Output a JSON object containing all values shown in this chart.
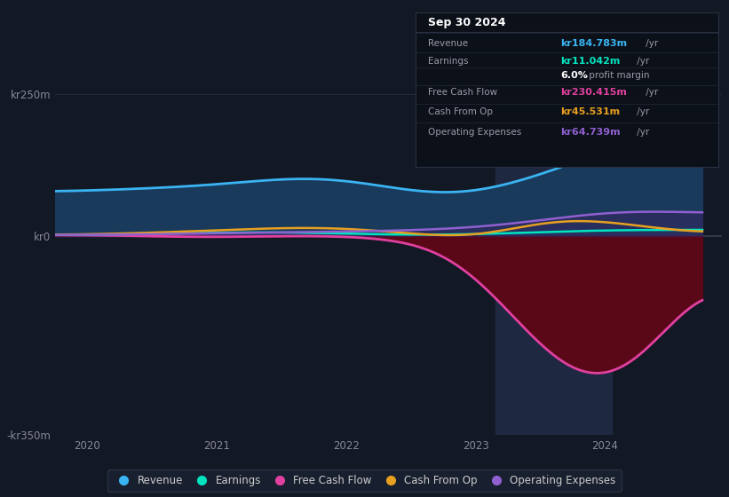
{
  "background_color": "#131825",
  "plot_bg_color": "#131825",
  "revenue_color": "#3ab4f2",
  "earnings_color": "#00e5c0",
  "fcf_color": "#e040a0",
  "cashfromop_color": "#e8a020",
  "opex_color": "#9060d0",
  "revenue_fill": "#1a3a5c",
  "fcf_fill_neg": "#5a0818",
  "legend_items": [
    "Revenue",
    "Earnings",
    "Free Cash Flow",
    "Cash From Op",
    "Operating Expenses"
  ],
  "legend_colors": [
    "#3ab4f2",
    "#00e5c0",
    "#e040a0",
    "#e8a020",
    "#9060d0"
  ],
  "x": [
    2019.75,
    2020.0,
    2020.25,
    2020.5,
    2020.75,
    2021.0,
    2021.25,
    2021.5,
    2021.75,
    2022.0,
    2022.25,
    2022.5,
    2022.75,
    2023.0,
    2023.25,
    2023.5,
    2023.75,
    2024.0,
    2024.25,
    2024.5,
    2024.75
  ],
  "revenue": [
    78,
    80,
    82,
    84,
    87,
    90,
    96,
    102,
    105,
    100,
    90,
    78,
    70,
    75,
    88,
    108,
    128,
    150,
    170,
    182,
    190
  ],
  "earnings": [
    2,
    2,
    3,
    4,
    5,
    6,
    7,
    7,
    6,
    4,
    3,
    2,
    2,
    3,
    5,
    7,
    9,
    10,
    11,
    11,
    11
  ],
  "fcf": [
    2,
    2,
    1,
    0,
    -2,
    -2,
    -1,
    0,
    1,
    0,
    -3,
    -8,
    -20,
    -60,
    -130,
    -200,
    -260,
    -270,
    -240,
    -160,
    -60
  ],
  "cashfromop": [
    2,
    3,
    4,
    6,
    8,
    10,
    12,
    15,
    16,
    14,
    10,
    5,
    -2,
    -5,
    10,
    28,
    32,
    28,
    18,
    10,
    5
  ],
  "opex": [
    2,
    2,
    3,
    3,
    4,
    5,
    6,
    7,
    7,
    8,
    9,
    10,
    12,
    15,
    20,
    28,
    36,
    42,
    45,
    44,
    40
  ],
  "ylim": [
    -350,
    280
  ],
  "xlim": [
    2019.75,
    2024.9
  ],
  "xtick_positions": [
    2020,
    2021,
    2022,
    2023,
    2024
  ],
  "xtick_labels": [
    "2020",
    "2021",
    "2022",
    "2023",
    "2024"
  ],
  "ytick_positions": [
    250,
    0,
    -350
  ],
  "ytick_labels": [
    "kr250m",
    "kr0",
    "-kr350m"
  ],
  "highlight_x_start": 2023.15,
  "highlight_x_end": 2024.05
}
